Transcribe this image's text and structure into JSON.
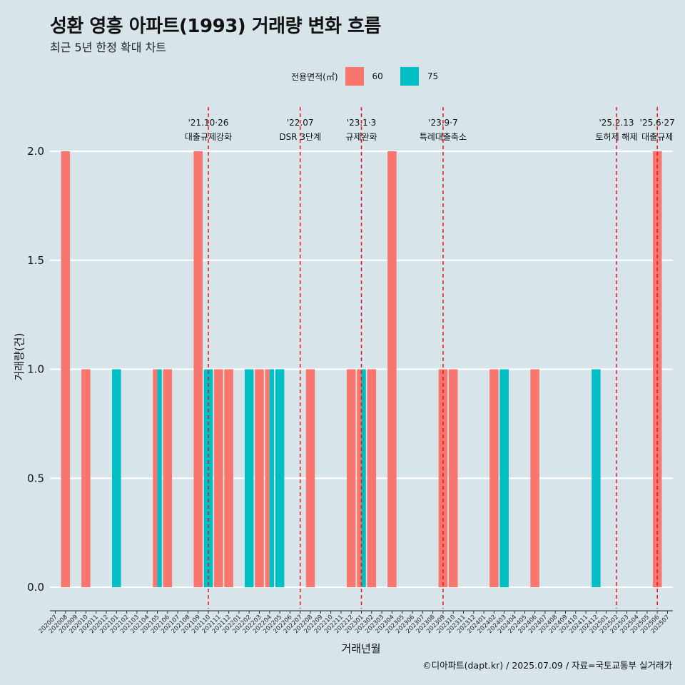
{
  "header": {
    "title": "성환 영흥 아파트(1993) 거래량 변화 흐름",
    "subtitle": "최근 5년 한정 확대 차트"
  },
  "legend": {
    "title": "전용면적(㎡)",
    "items": [
      {
        "label": "60",
        "color": "#f8766d"
      },
      {
        "label": "75",
        "color": "#00bfc4"
      }
    ]
  },
  "caption": "©디아파트(dapt.kr) / 2025.07.09 / 자료=국토교통부 실거래가",
  "chart_data": {
    "type": "bar",
    "xlabel": "거래년월",
    "ylabel": "거래량(건)",
    "ylim": [
      0,
      2
    ],
    "yticks": [
      "0.0",
      "0.5",
      "1.0",
      "1.5",
      "2.0"
    ],
    "categories": [
      "202007",
      "202008",
      "202009",
      "202010",
      "202011",
      "202012",
      "202101",
      "202102",
      "202103",
      "202104",
      "202105",
      "202106",
      "202107",
      "202108",
      "202109",
      "202110",
      "202111",
      "202112",
      "202201",
      "202202",
      "202203",
      "202204",
      "202205",
      "202206",
      "202207",
      "202208",
      "202209",
      "202210",
      "202211",
      "202212",
      "202301",
      "202302",
      "202303",
      "202304",
      "202305",
      "202306",
      "202307",
      "202308",
      "202309",
      "202310",
      "202311",
      "202312",
      "202401",
      "202402",
      "202403",
      "202404",
      "202405",
      "202406",
      "202407",
      "202408",
      "202409",
      "202410",
      "202411",
      "202412",
      "202501",
      "202502",
      "202503",
      "202504",
      "202505",
      "202506",
      "202507"
    ],
    "series": [
      {
        "name": "60",
        "color": "#f8766d",
        "values": [
          0,
          2,
          0,
          1,
          0,
          0,
          0,
          0,
          0,
          0,
          1,
          1,
          0,
          0,
          2,
          0,
          1,
          1,
          0,
          0,
          1,
          1,
          0,
          0,
          0,
          1,
          0,
          0,
          0,
          1,
          1,
          1,
          0,
          2,
          0,
          0,
          0,
          0,
          1,
          1,
          0,
          0,
          0,
          1,
          0,
          0,
          0,
          1,
          0,
          0,
          0,
          0,
          0,
          0,
          0,
          0,
          0,
          0,
          0,
          2,
          0
        ]
      },
      {
        "name": "75",
        "color": "#00bfc4",
        "values": [
          0,
          0,
          0,
          0,
          0,
          0,
          1,
          0,
          0,
          0,
          1,
          0,
          0,
          0,
          0,
          1,
          0,
          0,
          0,
          1,
          0,
          1,
          1,
          0,
          0,
          0,
          0,
          0,
          0,
          0,
          1,
          0,
          0,
          0,
          0,
          0,
          0,
          0,
          0,
          0,
          0,
          0,
          0,
          0,
          1,
          0,
          0,
          0,
          0,
          0,
          0,
          0,
          0,
          1,
          0,
          0,
          0,
          0,
          0,
          0,
          0
        ]
      }
    ],
    "annotations": [
      {
        "date": "'21.10·26",
        "label": "대출규제강화",
        "x": "202110"
      },
      {
        "date": "'22.07",
        "label": "DSR 3단계",
        "x": "202207"
      },
      {
        "date": "'23.1·3",
        "label": "규제완화",
        "x": "202301"
      },
      {
        "date": "'23.9·7",
        "label": "특례대출축소",
        "x": "202309"
      },
      {
        "date": "'25.2.13",
        "label": "토허제 해제",
        "x": "202502"
      },
      {
        "date": "'25.6·27",
        "label": "대출규제",
        "x": "202506"
      }
    ]
  }
}
